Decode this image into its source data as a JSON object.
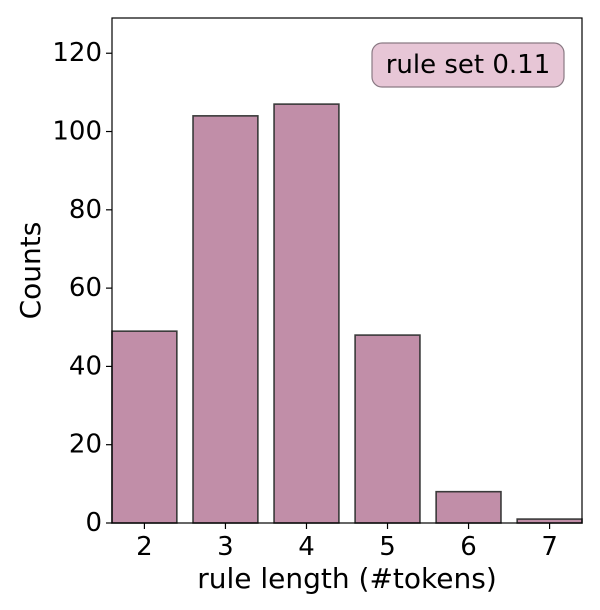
{
  "chart_data": {
    "type": "bar",
    "categories": [
      "2",
      "3",
      "4",
      "5",
      "6",
      "7"
    ],
    "values": [
      49,
      104,
      107,
      48,
      8,
      1
    ],
    "xlabel": "rule length (#tokens)",
    "ylabel": "Counts",
    "ylim": [
      0,
      129
    ],
    "yticks": [
      0,
      20,
      40,
      60,
      80,
      100,
      120
    ],
    "grid": false,
    "annotation": "rule set 0.11",
    "annotation_position": "top-right",
    "colors": {
      "bar_fill": "#c18ea8",
      "bar_edge": "#3a3a3a",
      "annotation_fill": "#e7c6d6",
      "annotation_edge": "#8a7a84"
    }
  }
}
